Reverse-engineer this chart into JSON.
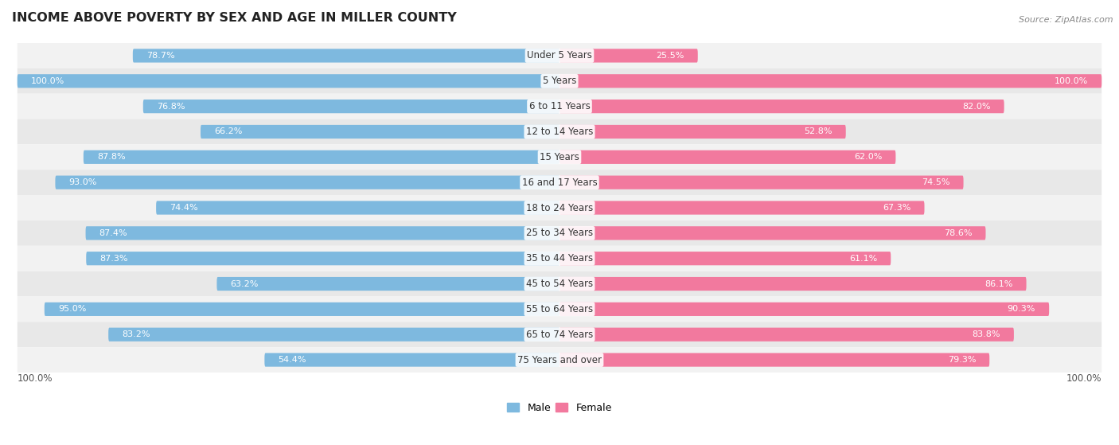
{
  "title": "INCOME ABOVE POVERTY BY SEX AND AGE IN MILLER COUNTY",
  "source": "Source: ZipAtlas.com",
  "categories": [
    "Under 5 Years",
    "5 Years",
    "6 to 11 Years",
    "12 to 14 Years",
    "15 Years",
    "16 and 17 Years",
    "18 to 24 Years",
    "25 to 34 Years",
    "35 to 44 Years",
    "45 to 54 Years",
    "55 to 64 Years",
    "65 to 74 Years",
    "75 Years and over"
  ],
  "male_values": [
    78.7,
    100.0,
    76.8,
    66.2,
    87.8,
    93.0,
    74.4,
    87.4,
    87.3,
    63.2,
    95.0,
    83.2,
    54.4
  ],
  "female_values": [
    25.5,
    100.0,
    82.0,
    52.8,
    62.0,
    74.5,
    67.3,
    78.6,
    61.1,
    86.1,
    90.3,
    83.8,
    79.3
  ],
  "male_color": "#7eb9df",
  "female_color": "#f2799e",
  "male_label": "Male",
  "female_label": "Female",
  "row_bg_odd": "#f7f7f7",
  "row_bg_even": "#ececec",
  "max_value": 100.0,
  "title_fontsize": 11.5,
  "label_fontsize": 8,
  "cat_fontsize": 8.5,
  "axis_fontsize": 8.5
}
